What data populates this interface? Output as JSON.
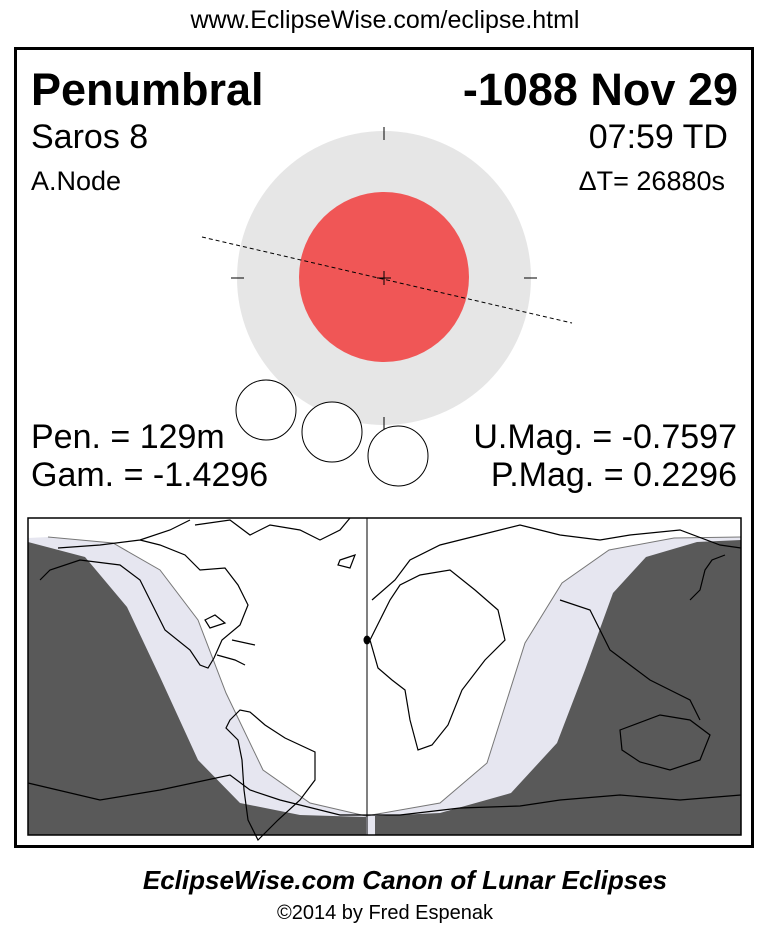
{
  "header": {
    "url": "www.EclipseWise.com/eclipse.html"
  },
  "eclipse": {
    "type": "Penumbral",
    "date": "-1088 Nov 29",
    "saros": "Saros   8",
    "time": "07:59 TD",
    "node": "A.Node",
    "delta_t": "ΔT=  26880s",
    "pen_duration": "Pen. = 129m",
    "gamma": "Gam. = -1.4296",
    "umbral_mag": "U.Mag. = -0.7597",
    "penumbral_mag": "P.Mag. = 0.2296"
  },
  "colors": {
    "umbra": "#f05656",
    "penumbra": "#e6e6e6",
    "night": "#595959",
    "penumbral_zone": "#e6e6f0"
  },
  "footer": {
    "title": "EclipseWise.com Canon of Lunar Eclipses",
    "copyright": "©2014 by Fred Espenak"
  }
}
